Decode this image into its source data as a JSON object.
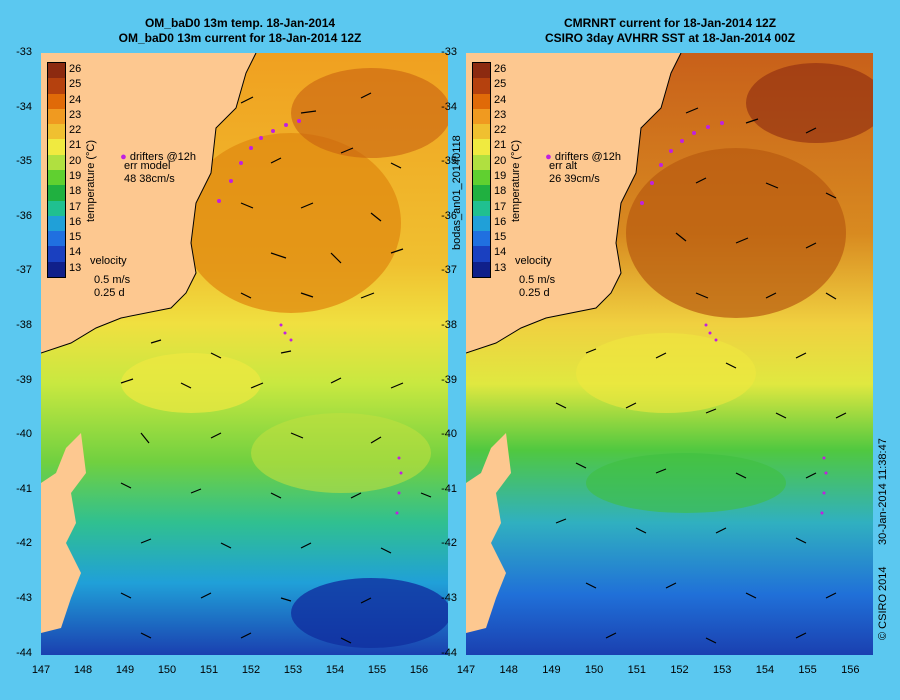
{
  "left": {
    "title_line1": "OM_baD0 13m temp. 18-Jan-2014",
    "title_line2": "OM_baD0 13m current for 18-Jan-2014 12Z",
    "drifters": "drifters @12h",
    "err_label": "err model",
    "err_value": "48 38cm/s"
  },
  "right": {
    "title_line1": "CMRNRT current for 18-Jan-2014 12Z",
    "title_line2": "CSIRO 3day AVHRR SST at 18-Jan-2014 00Z",
    "drifters": "drifters @12h",
    "err_label": "err alt",
    "err_value": "26 39cm/s"
  },
  "colorbar": {
    "title": "temperature (°C)",
    "ticks": [
      "26",
      "25",
      "24",
      "23",
      "22",
      "21",
      "20",
      "19",
      "18",
      "17",
      "16",
      "15",
      "14",
      "13"
    ],
    "colors": [
      "#8c2a10",
      "#b5410e",
      "#e06a08",
      "#f09a20",
      "#f0c030",
      "#f0ea40",
      "#b0e040",
      "#60d030",
      "#20b040",
      "#20c090",
      "#20a0d8",
      "#2070e0",
      "#1a40c0",
      "#10208a"
    ]
  },
  "velocity": {
    "label": "velocity",
    "speed": "0.5 m/s",
    "time": "0.25 d"
  },
  "y_ticks": [
    "-33",
    "-34",
    "-35",
    "-36",
    "-37",
    "-38",
    "-39",
    "-40",
    "-41",
    "-42",
    "-43",
    "-44"
  ],
  "x_ticks": [
    "147",
    "148",
    "149",
    "150",
    "151",
    "152",
    "153",
    "154",
    "155",
    "156"
  ],
  "side_labels": {
    "middle": "bodas_an01_20140118",
    "right": "30-Jan-2014 11:38:47",
    "credit": "© CSIRO 2014"
  }
}
